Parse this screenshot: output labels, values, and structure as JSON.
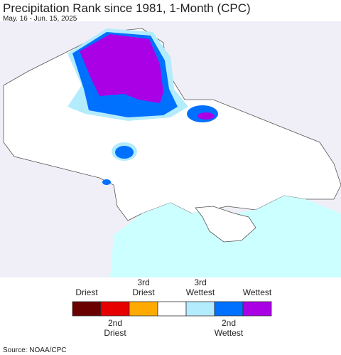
{
  "header": {
    "title": "Precipitation Rank since 1981, 1-Month (CPC)",
    "subtitle": "May. 16 - Jun. 15, 2025"
  },
  "legend": {
    "colors": [
      "#6b0000",
      "#e60000",
      "#ffaa00",
      "#ffffff",
      "#b3ecfc",
      "#0070ff",
      "#aa00e6"
    ],
    "top": [
      [
        "Driest"
      ],
      [
        "3rd",
        "Driest"
      ],
      [
        "3rd",
        "Wettest"
      ],
      [
        "Wettest"
      ]
    ],
    "bottom": [
      [
        "2nd",
        "Driest"
      ],
      [
        "2nd",
        "Wettest"
      ]
    ]
  },
  "footer": {
    "source": "Source: NOAA/CPC"
  }
}
